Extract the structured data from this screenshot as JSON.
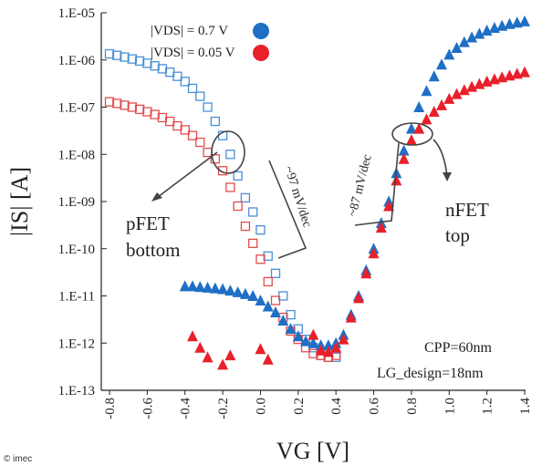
{
  "chart_data": {
    "type": "scatter",
    "title": "",
    "xlabel": "VG [V]",
    "ylabel": "|IS| [A]",
    "xlim": [
      -0.8,
      1.4
    ],
    "ylim_log10": [
      -13,
      -5
    ],
    "y_scale": "log",
    "grid": false,
    "x_ticks": [
      "-0.8",
      "-0.6",
      "-0.4",
      "-0.2",
      "0.0",
      "0.2",
      "0.4",
      "0.6",
      "0.8",
      "1.0",
      "1.2",
      "1.4"
    ],
    "y_ticks": [
      "1.E-05",
      "1.E-06",
      "1.E-07",
      "1.E-08",
      "1.E-09",
      "1.E-10",
      "1.E-11",
      "1.E-12",
      "1.E-13"
    ],
    "legend": [
      {
        "label": "|VDS| = 0.7 V",
        "color": "#1f6fc5"
      },
      {
        "label": "|VDS| = 0.05 V",
        "color": "#e8202a"
      }
    ],
    "series": [
      {
        "name": "pFET bottom |VDS| = 0.7 V",
        "marker": "open-square",
        "color": "#4a8fd6",
        "x": [
          -0.8,
          -0.76,
          -0.72,
          -0.68,
          -0.64,
          -0.6,
          -0.56,
          -0.52,
          -0.48,
          -0.44,
          -0.4,
          -0.36,
          -0.32,
          -0.28,
          -0.24,
          -0.2,
          -0.16,
          -0.12,
          -0.08,
          -0.04,
          0.0,
          0.04,
          0.08,
          0.12,
          0.16,
          0.2,
          0.24,
          0.28,
          0.32,
          0.36,
          0.4
        ],
        "y": [
          1.35e-06,
          1.25e-06,
          1.15e-06,
          1.05e-06,
          9.5e-07,
          8.5e-07,
          7.5e-07,
          6.5e-07,
          5.5e-07,
          4.5e-07,
          3.5e-07,
          2.5e-07,
          1.7e-07,
          1e-07,
          5e-08,
          2.5e-08,
          1e-08,
          3.5e-09,
          1.2e-09,
          6e-10,
          2.5e-10,
          7e-11,
          3e-11,
          1e-11,
          4e-12,
          2e-12,
          1.2e-12,
          8e-13,
          5.5e-13,
          5e-13,
          5e-13
        ]
      },
      {
        "name": "pFET bottom |VDS| = 0.05 V",
        "marker": "open-square",
        "color": "#e34c4c",
        "x": [
          -0.8,
          -0.76,
          -0.72,
          -0.68,
          -0.64,
          -0.6,
          -0.56,
          -0.52,
          -0.48,
          -0.44,
          -0.4,
          -0.36,
          -0.32,
          -0.28,
          -0.24,
          -0.2,
          -0.16,
          -0.12,
          -0.08,
          -0.04,
          0.0,
          0.04,
          0.08,
          0.12,
          0.16,
          0.2,
          0.24,
          0.28,
          0.32,
          0.36,
          0.4
        ],
        "y": [
          1.3e-07,
          1.2e-07,
          1.1e-07,
          1e-07,
          9e-08,
          8e-08,
          7e-08,
          6e-08,
          5e-08,
          4e-08,
          3.3e-08,
          2.5e-08,
          1.8e-08,
          1.1e-08,
          8e-09,
          4.5e-09,
          2e-09,
          8e-10,
          3e-10,
          1.3e-10,
          6e-11,
          2e-11,
          8e-12,
          3.5e-12,
          1.8e-12,
          1.2e-12,
          8e-13,
          6e-13,
          5.5e-13,
          5e-13,
          5.5e-13
        ]
      },
      {
        "name": "nFET top |VDS| = 0.7 V",
        "marker": "filled-triangle",
        "color": "#1f6fc5",
        "x": [
          -0.4,
          -0.36,
          -0.32,
          -0.28,
          -0.24,
          -0.2,
          -0.16,
          -0.12,
          -0.08,
          -0.04,
          0.0,
          0.04,
          0.08,
          0.12,
          0.16,
          0.2,
          0.24,
          0.28,
          0.32,
          0.36,
          0.4,
          0.44,
          0.48,
          0.52,
          0.56,
          0.6,
          0.64,
          0.68,
          0.72,
          0.76,
          0.8,
          0.84,
          0.88,
          0.92,
          0.96,
          1.0,
          1.04,
          1.08,
          1.12,
          1.16,
          1.2,
          1.24,
          1.28,
          1.32,
          1.36,
          1.4
        ],
        "y": [
          1.6e-11,
          1.6e-11,
          1.55e-11,
          1.5e-11,
          1.45e-11,
          1.4e-11,
          1.3e-11,
          1.2e-11,
          1.1e-11,
          1e-11,
          8e-12,
          6e-12,
          4.5e-12,
          3e-12,
          2e-12,
          1.4e-12,
          1.1e-12,
          1e-12,
          9e-13,
          9e-13,
          1e-12,
          1.5e-12,
          4e-12,
          1e-11,
          3.5e-11,
          1e-10,
          3.5e-10,
          1e-09,
          4e-09,
          1.2e-08,
          3.5e-08,
          1e-07,
          2.2e-07,
          4.5e-07,
          8e-07,
          1.3e-06,
          1.8e-06,
          2.4e-06,
          3e-06,
          3.6e-06,
          4.2e-06,
          4.8e-06,
          5.3e-06,
          5.8e-06,
          6.2e-06,
          6.6e-06
        ]
      },
      {
        "name": "nFET top |VDS| = 0.05 V",
        "marker": "filled-triangle",
        "color": "#e8202a",
        "x": [
          -0.36,
          -0.32,
          -0.28,
          -0.2,
          -0.16,
          0.0,
          0.04,
          0.28,
          0.32,
          0.36,
          0.4,
          0.44,
          0.48,
          0.52,
          0.56,
          0.6,
          0.64,
          0.68,
          0.72,
          0.76,
          0.8,
          0.84,
          0.88,
          0.92,
          0.96,
          1.0,
          1.04,
          1.08,
          1.12,
          1.16,
          1.2,
          1.24,
          1.28,
          1.32,
          1.36,
          1.4
        ],
        "y": [
          1.4e-12,
          8e-13,
          5e-13,
          3.5e-13,
          5.5e-13,
          7.5e-13,
          4.5e-13,
          1.5e-12,
          7e-13,
          6.5e-13,
          8e-13,
          1.2e-12,
          3.5e-12,
          9e-12,
          3e-11,
          8e-11,
          2.8e-10,
          8e-10,
          2.8e-09,
          8e-09,
          2e-08,
          3.5e-08,
          5.5e-08,
          8e-08,
          1.1e-07,
          1.5e-07,
          1.9e-07,
          2.3e-07,
          2.7e-07,
          3.1e-07,
          3.5e-07,
          3.9e-07,
          4.3e-07,
          4.7e-07,
          5.1e-07,
          5.5e-07
        ]
      }
    ],
    "annotations": {
      "pfet_label_line1": "pFET",
      "pfet_label_line2": "bottom",
      "nfet_label_line1": "nFET",
      "nfet_label_line2": "top",
      "pfet_slope": "~97  mV/dec",
      "nfet_slope": "~87 mV/dec",
      "cpp": "CPP=60nm",
      "lg": "LG_design=18nm"
    }
  },
  "credit": "© imec"
}
